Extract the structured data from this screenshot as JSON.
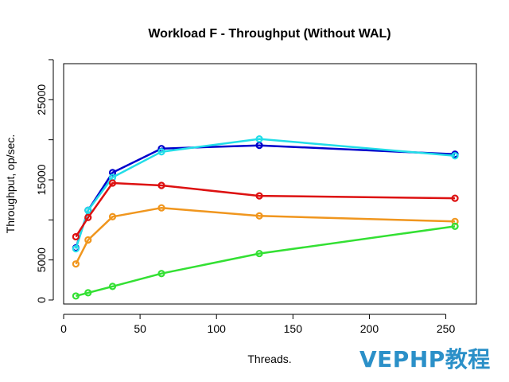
{
  "chart_data": {
    "type": "line",
    "title": "Workload F - Throughput (Without WAL)",
    "xlabel": "Threads.",
    "ylabel": "Throughput, op/sec.",
    "xlim": [
      0,
      270
    ],
    "ylim": [
      -500,
      29500
    ],
    "x_ticks": [
      "0",
      "50",
      "100",
      "150",
      "200",
      "250"
    ],
    "y_ticks": [
      "0",
      "5000",
      "15000",
      "25000"
    ],
    "x_tick_values": [
      0,
      50,
      100,
      150,
      200,
      250
    ],
    "y_tick_values": [
      0,
      5000,
      15000,
      25000
    ],
    "grid": false,
    "x": [
      8,
      16,
      32,
      64,
      128,
      256
    ],
    "series": [
      {
        "color": "#0000cc",
        "values": [
          6500,
          11200,
          15900,
          18900,
          19300,
          18200
        ]
      },
      {
        "color": "#22dde8",
        "values": [
          6400,
          11200,
          15300,
          18500,
          20100,
          18000
        ]
      },
      {
        "color": "#dd1111",
        "values": [
          7900,
          10300,
          14600,
          14300,
          13000,
          12700
        ]
      },
      {
        "color": "#f0961e",
        "values": [
          4500,
          7500,
          10400,
          11500,
          10500,
          9800
        ]
      },
      {
        "color": "#33e033",
        "values": [
          500,
          900,
          1700,
          3300,
          5800,
          9200
        ]
      }
    ]
  },
  "watermark": "VEPHP教程"
}
